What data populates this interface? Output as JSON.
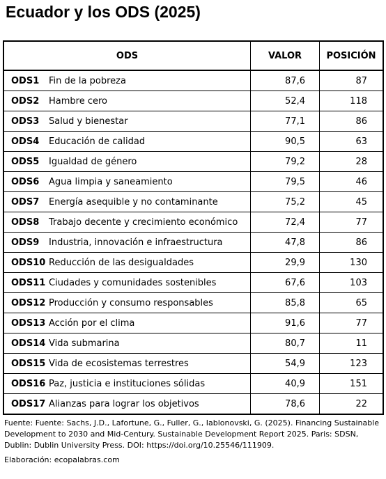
{
  "title": "Ecuador y los ODS (2025)",
  "table": {
    "headers": [
      "ODS",
      "VALOR",
      "POSICIÓN"
    ],
    "rows": [
      [
        "ODS1",
        "Fin de la pobreza",
        "87,6",
        87
      ],
      [
        "ODS2",
        "Hambre cero",
        "52,4",
        118
      ],
      [
        "ODS3",
        "Salud y  bienestar",
        "77,1",
        86
      ],
      [
        "ODS4",
        "Educación de calidad",
        "90,5",
        63
      ],
      [
        "ODS5",
        "Igualdad de género",
        "79,2",
        28
      ],
      [
        "ODS6",
        "Agua limpia y saneamiento",
        "79,5",
        46
      ],
      [
        "ODS7",
        "Energía asequible y no contaminante",
        "75,2",
        45
      ],
      [
        "ODS8",
        "Trabajo decente y crecimiento económico",
        "72,4",
        77
      ],
      [
        "ODS9",
        "Industria, innovación e infraestructura",
        "47,8",
        86
      ],
      [
        "ODS10",
        "Reducción de las desigualdades",
        "29,9",
        130
      ],
      [
        "ODS11",
        "Ciudades y comunidades sostenibles",
        "67,6",
        103
      ],
      [
        "ODS12",
        "Producción y consumo responsables",
        "85,8",
        65
      ],
      [
        "ODS13",
        "Acción por el clima",
        "91,6",
        77
      ],
      [
        "ODS14",
        "Vida submarina",
        "80,7",
        11
      ],
      [
        "ODS15",
        "Vida de ecosistemas terrestres",
        "54,9",
        123
      ],
      [
        "ODS16",
        "Paz, justicia e instituciones sólidas",
        "40,9",
        151
      ],
      [
        "ODS17",
        "Alianzas para lograr los objetivos",
        "78,6",
        22
      ]
    ]
  },
  "footer": {
    "source": "Fuente: Fuente: Sachs, J.D., Lafortune, G., Fuller, G., Iablonovski, G. (2025). Financing Sustainable Development to 2030 and Mid-Century. Sustainable Development Report 2025. Paris: SDSN, Dublin: Dublin University Press. DOI: https://doi.org/10.25546/111909.",
    "credit": "Elaboración: ecopalabras.com"
  }
}
